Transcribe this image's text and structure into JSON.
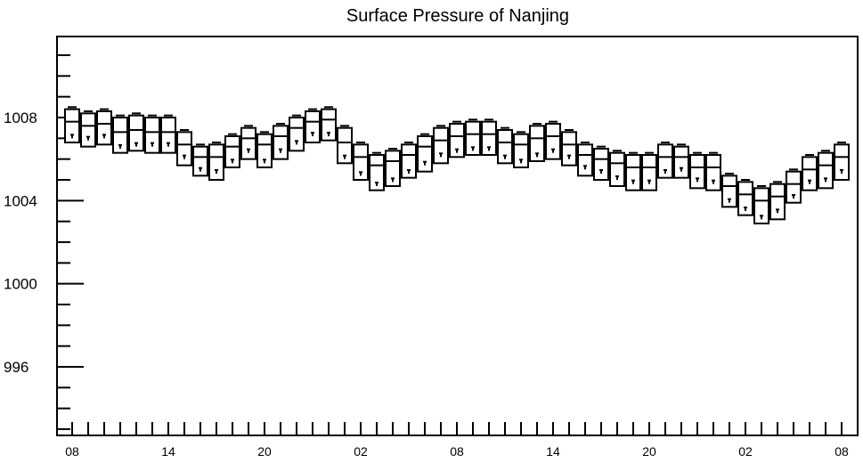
{
  "chart_data": {
    "type": "box",
    "title": "Surface Pressure of Nanjing",
    "xlabel": "",
    "ylabel": "",
    "ylim": [
      992.7,
      1011.9
    ],
    "y_ticks": [
      996,
      1000,
      1004,
      1008
    ],
    "y_tick_labels": [
      "996",
      "1000",
      "1004",
      "1008"
    ],
    "x_tick_labels": [
      "08",
      "14",
      "20",
      "02",
      "08",
      "14",
      "20",
      "02",
      "08"
    ],
    "x_tick_positions": [
      0,
      6,
      12,
      18,
      24,
      30,
      36,
      42,
      48
    ],
    "grid": false,
    "series": [
      {
        "x": [
          0,
          1,
          2,
          3,
          4,
          5,
          6,
          7,
          8,
          9,
          10,
          11,
          12,
          13,
          14,
          15,
          16,
          17,
          18,
          19,
          20,
          21,
          22,
          23,
          24,
          25,
          26,
          27,
          28,
          29,
          30,
          31,
          32,
          33,
          34,
          35,
          36,
          37,
          38,
          39,
          40,
          41,
          42,
          43,
          44,
          45,
          46,
          47,
          48
        ],
        "upper_whisker": [
          1008.5,
          1008.3,
          1008.4,
          1008.1,
          1008.2,
          1008.1,
          1008.1,
          1007.4,
          1006.7,
          1006.8,
          1007.2,
          1007.6,
          1007.3,
          1007.7,
          1008.1,
          1008.4,
          1008.5,
          1007.6,
          1006.8,
          1006.3,
          1006.5,
          1006.8,
          1007.2,
          1007.6,
          1007.8,
          1007.9,
          1007.9,
          1007.5,
          1007.3,
          1007.7,
          1007.8,
          1007.4,
          1006.8,
          1006.6,
          1006.4,
          1006.3,
          1006.3,
          1006.8,
          1006.7,
          1006.3,
          1006.3,
          1005.3,
          1005.0,
          1004.7,
          1004.9,
          1005.5,
          1006.2,
          1006.4,
          1006.8
        ],
        "q3": [
          1008.4,
          1008.2,
          1008.3,
          1008.0,
          1008.1,
          1008.0,
          1008.0,
          1007.3,
          1006.6,
          1006.7,
          1007.1,
          1007.5,
          1007.2,
          1007.6,
          1008.0,
          1008.3,
          1008.4,
          1007.5,
          1006.7,
          1006.2,
          1006.4,
          1006.7,
          1007.1,
          1007.5,
          1007.7,
          1007.8,
          1007.8,
          1007.4,
          1007.2,
          1007.6,
          1007.7,
          1007.3,
          1006.7,
          1006.5,
          1006.3,
          1006.2,
          1006.2,
          1006.7,
          1006.6,
          1006.2,
          1006.2,
          1005.2,
          1004.9,
          1004.6,
          1004.8,
          1005.4,
          1006.1,
          1006.3,
          1006.7
        ],
        "median": [
          1007.8,
          1007.6,
          1007.7,
          1007.3,
          1007.4,
          1007.3,
          1007.3,
          1006.7,
          1006.1,
          1006.1,
          1006.6,
          1007.0,
          1006.7,
          1007.1,
          1007.5,
          1007.8,
          1007.9,
          1006.8,
          1006.1,
          1005.7,
          1005.9,
          1006.2,
          1006.6,
          1006.9,
          1007.1,
          1007.2,
          1007.2,
          1006.8,
          1006.7,
          1007.0,
          1007.1,
          1006.7,
          1006.2,
          1006.0,
          1005.8,
          1005.6,
          1005.6,
          1006.1,
          1006.1,
          1005.6,
          1005.6,
          1004.7,
          1004.3,
          1004.0,
          1004.2,
          1004.8,
          1005.5,
          1005.7,
          1006.1
        ],
        "q1": [
          1006.8,
          1006.6,
          1006.7,
          1006.3,
          1006.4,
          1006.3,
          1006.3,
          1005.7,
          1005.2,
          1005.0,
          1005.6,
          1006.0,
          1005.6,
          1006.0,
          1006.4,
          1006.8,
          1006.9,
          1005.8,
          1005.0,
          1004.5,
          1004.7,
          1005.1,
          1005.4,
          1005.8,
          1006.1,
          1006.2,
          1006.2,
          1005.8,
          1005.6,
          1005.9,
          1006.0,
          1005.7,
          1005.2,
          1005.0,
          1004.7,
          1004.5,
          1004.5,
          1005.1,
          1005.1,
          1004.6,
          1004.5,
          1003.7,
          1003.3,
          1002.9,
          1003.1,
          1003.9,
          1004.5,
          1004.6,
          1005.0
        ],
        "lower_whisker": [
          1007.0,
          1006.9,
          1007.0,
          1006.5,
          1006.6,
          1006.6,
          1006.6,
          1006.0,
          1005.4,
          1005.3,
          1005.8,
          1006.3,
          1005.8,
          1006.3,
          1006.7,
          1007.1,
          1007.1,
          1006.0,
          1005.2,
          1004.7,
          1004.9,
          1005.3,
          1005.7,
          1006.1,
          1006.3,
          1006.4,
          1006.4,
          1006.0,
          1005.8,
          1006.1,
          1006.3,
          1006.0,
          1005.5,
          1005.3,
          1005.0,
          1004.8,
          1004.8,
          1005.3,
          1005.4,
          1004.9,
          1004.8,
          1003.9,
          1003.5,
          1003.1,
          1003.4,
          1004.1,
          1004.8,
          1004.9,
          1005.3
        ]
      }
    ]
  }
}
